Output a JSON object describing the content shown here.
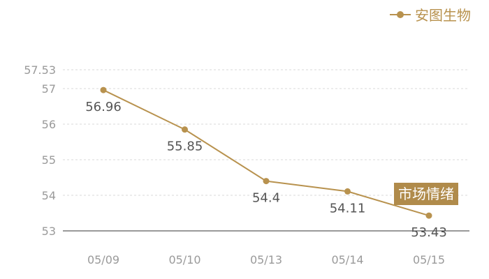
{
  "legend": {
    "label": "安图生物"
  },
  "badge": {
    "label": "市场情绪"
  },
  "colors": {
    "series": "#b8924e",
    "grid": "#d9d9d9",
    "badge_bg": "#b08b4b"
  },
  "chart_data": {
    "type": "line",
    "categories": [
      "05/09",
      "05/10",
      "05/13",
      "05/14",
      "05/15"
    ],
    "series": [
      {
        "name": "安图生物",
        "values": [
          56.96,
          55.85,
          54.4,
          54.11,
          53.43
        ]
      }
    ],
    "data_labels": [
      "56.96",
      "55.85",
      "54.4",
      "54.11",
      "53.43"
    ],
    "yticks": [
      53,
      54,
      55,
      56,
      57,
      57.53
    ],
    "ytick_labels": [
      "53",
      "54",
      "55",
      "56",
      "57",
      "57.53"
    ],
    "ylim": [
      53,
      57.53
    ],
    "grid": true,
    "legend_position": "top-right"
  }
}
